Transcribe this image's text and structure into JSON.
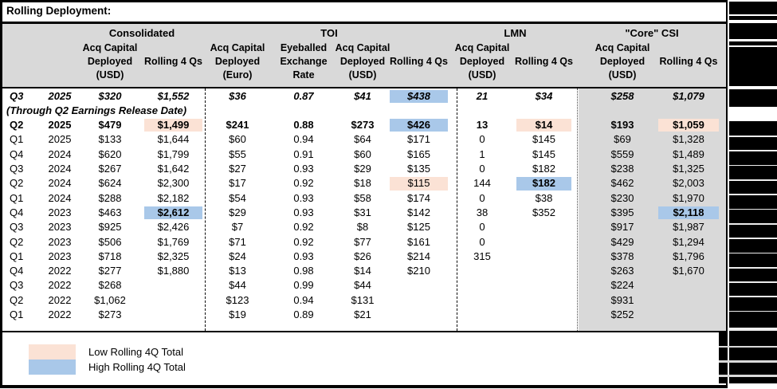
{
  "title": "Rolling Deployment:",
  "table": {
    "groups": [
      {
        "id": "consolidated",
        "label": "Consolidated"
      },
      {
        "id": "toi",
        "label": "TOI"
      },
      {
        "id": "lmn",
        "label": "LMN"
      },
      {
        "id": "core-csi",
        "label": "\"Core\" CSI"
      }
    ],
    "columns": [
      {
        "key": "cons_acq",
        "group": "consolidated",
        "header": [
          "Acq Capital",
          "Deployed",
          "(USD)"
        ]
      },
      {
        "key": "cons_roll",
        "group": "consolidated",
        "header": [
          "Rolling 4 Qs"
        ],
        "single": true
      },
      {
        "key": "toi_euro",
        "group": "toi",
        "header": [
          "Acq Capital",
          "Deployed",
          "(Euro)"
        ]
      },
      {
        "key": "toi_fx",
        "group": "toi",
        "header": [
          "Eyeballed",
          "Exchange",
          "Rate"
        ]
      },
      {
        "key": "toi_usd",
        "group": "toi",
        "header": [
          "Acq Capital",
          "Deployed",
          "(USD)"
        ]
      },
      {
        "key": "toi_roll",
        "group": "toi",
        "header": [
          "Rolling 4 Qs"
        ],
        "single": true
      },
      {
        "key": "lmn_acq",
        "group": "lmn",
        "header": [
          "Acq Capital",
          "Deployed",
          "(USD)"
        ]
      },
      {
        "key": "lmn_roll",
        "group": "lmn",
        "header": [
          "Rolling 4 Qs"
        ],
        "single": true
      },
      {
        "key": "core_acq",
        "group": "core-csi",
        "header": [
          "Acq Capital",
          "Deployed",
          "(USD)"
        ]
      },
      {
        "key": "core_roll",
        "group": "core-csi",
        "header": [
          "Rolling 4 Qs"
        ],
        "single": true
      }
    ],
    "note": "(Through Q2 Earnings Release Date)",
    "rows": [
      {
        "q": "Q3",
        "year": "2025",
        "style": "topline",
        "cells": {
          "cons_acq": "$320",
          "cons_roll": "$1,552",
          "toi_euro": "$36",
          "toi_fx": "0.87",
          "toi_usd": "$41",
          "toi_roll": "$438",
          "lmn_acq": "21",
          "lmn_roll": "$34",
          "core_acq": "$258",
          "core_roll": "$1,079"
        },
        "hl": {
          "toi_roll": "high"
        }
      },
      {
        "note": true
      },
      {
        "q": "Q2",
        "year": "2025",
        "style": "bold",
        "cells": {
          "cons_acq": "$479",
          "cons_roll": "$1,499",
          "toi_euro": "$241",
          "toi_fx": "0.88",
          "toi_usd": "$273",
          "toi_roll": "$426",
          "lmn_acq": "13",
          "lmn_roll": "$14",
          "core_acq": "$193",
          "core_roll": "$1,059"
        },
        "hl": {
          "cons_roll": "low",
          "toi_roll": "high",
          "lmn_roll": "low",
          "core_roll": "low"
        }
      },
      {
        "q": "Q1",
        "year": "2025",
        "cells": {
          "cons_acq": "$133",
          "cons_roll": "$1,644",
          "toi_euro": "$60",
          "toi_fx": "0.94",
          "toi_usd": "$64",
          "toi_roll": "$171",
          "lmn_acq": "0",
          "lmn_roll": "$145",
          "core_acq": "$69",
          "core_roll": "$1,328"
        }
      },
      {
        "q": "Q4",
        "year": "2024",
        "cells": {
          "cons_acq": "$620",
          "cons_roll": "$1,799",
          "toi_euro": "$55",
          "toi_fx": "0.91",
          "toi_usd": "$60",
          "toi_roll": "$165",
          "lmn_acq": "1",
          "lmn_roll": "$145",
          "core_acq": "$559",
          "core_roll": "$1,489"
        }
      },
      {
        "q": "Q3",
        "year": "2024",
        "cells": {
          "cons_acq": "$267",
          "cons_roll": "$1,642",
          "toi_euro": "$27",
          "toi_fx": "0.93",
          "toi_usd": "$29",
          "toi_roll": "$135",
          "lmn_acq": "0",
          "lmn_roll": "$182",
          "core_acq": "$238",
          "core_roll": "$1,325"
        }
      },
      {
        "q": "Q2",
        "year": "2024",
        "cells": {
          "cons_acq": "$624",
          "cons_roll": "$2,300",
          "toi_euro": "$17",
          "toi_fx": "0.92",
          "toi_usd": "$18",
          "toi_roll": "$115",
          "lmn_acq": "144",
          "lmn_roll": "$182",
          "core_acq": "$462",
          "core_roll": "$2,003"
        },
        "hl": {
          "toi_roll": "low",
          "lmn_roll": "high"
        }
      },
      {
        "q": "Q1",
        "year": "2024",
        "cells": {
          "cons_acq": "$288",
          "cons_roll": "$2,182",
          "toi_euro": "$54",
          "toi_fx": "0.93",
          "toi_usd": "$58",
          "toi_roll": "$174",
          "lmn_acq": "0",
          "lmn_roll": "$38",
          "core_acq": "$230",
          "core_roll": "$1,970"
        }
      },
      {
        "q": "Q4",
        "year": "2023",
        "cells": {
          "cons_acq": "$463",
          "cons_roll": "$2,612",
          "toi_euro": "$29",
          "toi_fx": "0.93",
          "toi_usd": "$31",
          "toi_roll": "$142",
          "lmn_acq": "38",
          "lmn_roll": "$352",
          "core_acq": "$395",
          "core_roll": "$2,118"
        },
        "hl": {
          "cons_roll": "high",
          "core_roll": "high"
        }
      },
      {
        "q": "Q3",
        "year": "2023",
        "cells": {
          "cons_acq": "$925",
          "cons_roll": "$2,426",
          "toi_euro": "$7",
          "toi_fx": "0.92",
          "toi_usd": "$8",
          "toi_roll": "$125",
          "lmn_acq": "0",
          "lmn_roll": "",
          "core_acq": "$917",
          "core_roll": "$1,987"
        }
      },
      {
        "q": "Q2",
        "year": "2023",
        "cells": {
          "cons_acq": "$506",
          "cons_roll": "$1,769",
          "toi_euro": "$71",
          "toi_fx": "0.92",
          "toi_usd": "$77",
          "toi_roll": "$161",
          "lmn_acq": "0",
          "lmn_roll": "",
          "core_acq": "$429",
          "core_roll": "$1,294"
        }
      },
      {
        "q": "Q1",
        "year": "2023",
        "cells": {
          "cons_acq": "$718",
          "cons_roll": "$2,325",
          "toi_euro": "$24",
          "toi_fx": "0.93",
          "toi_usd": "$26",
          "toi_roll": "$214",
          "lmn_acq": "315",
          "lmn_roll": "",
          "core_acq": "$378",
          "core_roll": "$1,796"
        }
      },
      {
        "q": "Q4",
        "year": "2022",
        "cells": {
          "cons_acq": "$277",
          "cons_roll": "$1,880",
          "toi_euro": "$13",
          "toi_fx": "0.98",
          "toi_usd": "$14",
          "toi_roll": "$210",
          "lmn_acq": "",
          "lmn_roll": "",
          "core_acq": "$263",
          "core_roll": "$1,670"
        }
      },
      {
        "q": "Q3",
        "year": "2022",
        "cells": {
          "cons_acq": "$268",
          "cons_roll": "",
          "toi_euro": "$44",
          "toi_fx": "0.99",
          "toi_usd": "$44",
          "toi_roll": "",
          "lmn_acq": "",
          "lmn_roll": "",
          "core_acq": "$224",
          "core_roll": ""
        }
      },
      {
        "q": "Q2",
        "year": "2022",
        "cells": {
          "cons_acq": "$1,062",
          "cons_roll": "",
          "toi_euro": "$123",
          "toi_fx": "0.94",
          "toi_usd": "$131",
          "toi_roll": "",
          "lmn_acq": "",
          "lmn_roll": "",
          "core_acq": "$931",
          "core_roll": ""
        }
      },
      {
        "q": "Q1",
        "year": "2022",
        "cells": {
          "cons_acq": "$273",
          "cons_roll": "",
          "toi_euro": "$19",
          "toi_fx": "0.89",
          "toi_usd": "$21",
          "toi_roll": "",
          "lmn_acq": "",
          "lmn_roll": "",
          "core_acq": "$252",
          "core_roll": ""
        }
      }
    ]
  },
  "legend": {
    "items": [
      {
        "type": "low",
        "label": "Low Rolling 4Q Total"
      },
      {
        "type": "high",
        "label": "High Rolling 4Q Total"
      }
    ]
  },
  "colors": {
    "low_highlight": "#fbe2d5",
    "high_highlight": "#a9c8e9",
    "header_bg": "#d9d9d9",
    "core_bg": "#d9d9d9",
    "redaction": "#000000"
  }
}
